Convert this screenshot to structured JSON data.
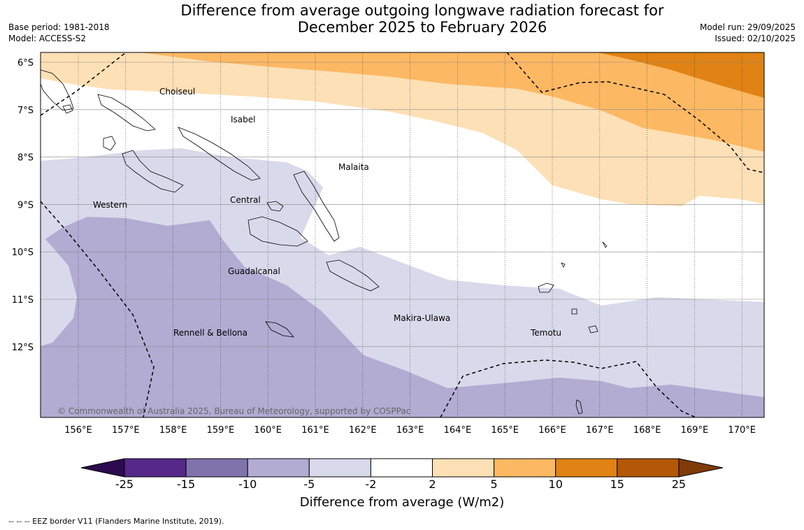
{
  "title": {
    "line1": "Difference from average outgoing longwave radiation forecast for",
    "line2": "December 2025 to February 2026"
  },
  "meta": {
    "base_period": "Base period: 1981-2018",
    "model": "Model: ACCESS-S2",
    "model_run": "Model run: 29/09/2025",
    "issued": "Issued: 02/10/2025"
  },
  "map": {
    "lat_labels": [
      "6°S",
      "7°S",
      "8°S",
      "9°S",
      "10°S",
      "11°S",
      "12°S"
    ],
    "lon_labels": [
      "156°E",
      "157°E",
      "158°E",
      "159°E",
      "160°E",
      "161°E",
      "162°E",
      "163°E",
      "164°E",
      "165°E",
      "166°E",
      "167°E",
      "168°E",
      "169°E",
      "170°E"
    ],
    "places": [
      "Choiseul",
      "Isabel",
      "Malaita",
      "Western",
      "Central",
      "Guadalcanal",
      "Makira-Ulawa",
      "Temotu",
      "Rennell & Bellona"
    ],
    "copyright": "© Commonwealth of Australia 2025, Bureau of Meteorology, supported by COSPPac"
  },
  "colorbar": {
    "ticks": [
      "-25",
      "-15",
      "-10",
      "-5",
      "-2",
      "2",
      "5",
      "10",
      "15",
      "25"
    ],
    "colors": [
      "#2d0a4f",
      "#562888",
      "#8073ac",
      "#b2abd2",
      "#d8daeb",
      "#ffffff",
      "#fee0b6",
      "#fdb863",
      "#e08214",
      "#b35806",
      "#7f3b08"
    ],
    "title": "Difference from average (W/m2)"
  },
  "legend": {
    "eez": "--  --  -- EEZ border V11 (Flanders Marine Institute, 2019)."
  }
}
